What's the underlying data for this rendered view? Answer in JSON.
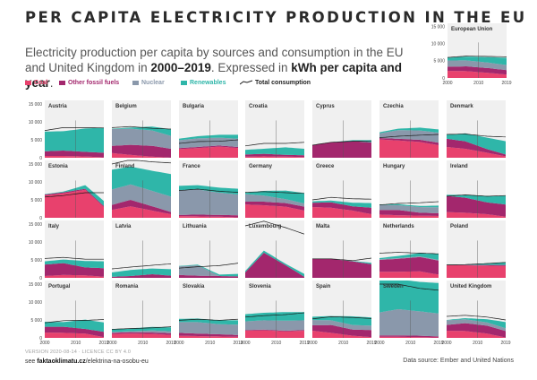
{
  "header": {
    "title": "PER CAPITA ELECTRICITY PRODUCTION IN THE EU",
    "subtitle_1": "Electricity production per capita by sources and consumption",
    "subtitle_2": " in the EU and United Kingdom in ",
    "subtitle_3": "2000–2019",
    "subtitle_4": ". Expressed in ",
    "subtitle_5": "kWh per capita and year",
    "subtitle_6": "."
  },
  "legend": {
    "coal": "Coal",
    "other_fossil": "Other fossil fuels",
    "nuclear": "Nuclear",
    "renewables": "Renewables",
    "consumption": "Total consumption"
  },
  "colors": {
    "coal": "#e8416d",
    "other_fossil": "#a3276d",
    "nuclear": "#8a98ab",
    "renewables": "#2fb6a9",
    "consumption": "#1a1a1a",
    "panel_bg": "#f0f0f0"
  },
  "footer": {
    "version": "VERSION 2020-08-14 · LICENCE CC BY 4.0",
    "link_prefix": "see ",
    "link_domain": "faktaoklimatu.cz",
    "link_path": "/elektrina-na-osobu-eu",
    "source": "Data source: Ember and United Nations"
  },
  "chart_data": {
    "type": "area",
    "stacked": true,
    "series_order": [
      "coal",
      "other_fossil",
      "nuclear",
      "renewables"
    ],
    "x_ticks": [
      "2000",
      "2010",
      "2019"
    ],
    "y_ticks": [
      "0",
      "5 000",
      "10 000",
      "15 000"
    ],
    "ylim": [
      0,
      16000
    ],
    "ylabel": "",
    "xlabel": "",
    "countries": [
      {
        "name": "European Union",
        "coal": [
          2100,
          2000,
          1500,
          1000
        ],
        "other_fossil": [
          1200,
          1400,
          1400,
          1300
        ],
        "nuclear": [
          1800,
          1750,
          1600,
          1500
        ],
        "renewables": [
          800,
          1100,
          1600,
          2100
        ],
        "consumption": [
          6000,
          6400,
          6300,
          6200
        ]
      },
      {
        "name": "Austria",
        "coal": [
          500,
          500,
          350,
          100
        ],
        "other_fossil": [
          1300,
          1500,
          1300,
          1300
        ],
        "nuclear": [
          0,
          0,
          0,
          0
        ],
        "renewables": [
          5500,
          5400,
          6500,
          7000
        ],
        "consumption": [
          7600,
          8400,
          8400,
          8300
        ]
      },
      {
        "name": "Belgium",
        "coal": [
          1300,
          800,
          300,
          0
        ],
        "other_fossil": [
          2000,
          2800,
          3000,
          2500
        ],
        "nuclear": [
          4700,
          4500,
          4300,
          3600
        ],
        "renewables": [
          100,
          300,
          1100,
          1800
        ],
        "consumption": [
          8400,
          8700,
          8200,
          8000
        ]
      },
      {
        "name": "Bulgaria",
        "coal": [
          2400,
          2700,
          3100,
          2700
        ],
        "other_fossil": [
          300,
          300,
          300,
          300
        ],
        "nuclear": [
          2200,
          2400,
          2200,
          2300
        ],
        "renewables": [
          400,
          600,
          800,
          1100
        ],
        "consumption": [
          4000,
          4500,
          4600,
          5000
        ]
      },
      {
        "name": "Croatia",
        "coal": [
          300,
          400,
          300,
          200
        ],
        "other_fossil": [
          600,
          700,
          500,
          500
        ],
        "nuclear": [
          0,
          0,
          0,
          0
        ],
        "renewables": [
          1300,
          1400,
          2100,
          1800
        ],
        "consumption": [
          3300,
          4000,
          4000,
          4300
        ]
      },
      {
        "name": "Cyprus",
        "coal": [
          0,
          0,
          0,
          0
        ],
        "other_fossil": [
          3500,
          4300,
          4600,
          4300
        ],
        "nuclear": [
          0,
          0,
          0,
          0
        ],
        "renewables": [
          0,
          0,
          300,
          600
        ],
        "consumption": [
          3500,
          4300,
          4600,
          4700
        ]
      },
      {
        "name": "Czechia",
        "coal": [
          5100,
          4800,
          4400,
          3500
        ],
        "other_fossil": [
          400,
          500,
          600,
          700
        ],
        "nuclear": [
          1300,
          2400,
          2600,
          2800
        ],
        "renewables": [
          300,
          400,
          800,
          900
        ],
        "consumption": [
          5600,
          6000,
          6300,
          6500
        ]
      },
      {
        "name": "Denmark",
        "coal": [
          3000,
          2500,
          1400,
          400
        ],
        "other_fossil": [
          2300,
          2100,
          1000,
          500
        ],
        "nuclear": [
          0,
          0,
          0,
          0
        ],
        "renewables": [
          1100,
          2200,
          3200,
          3700
        ],
        "consumption": [
          6500,
          6600,
          6000,
          5800
        ]
      },
      {
        "name": "Estonia",
        "coal": [
          6200,
          6800,
          7800,
          3000
        ],
        "other_fossil": [
          300,
          300,
          300,
          300
        ],
        "nuclear": [
          0,
          0,
          0,
          0
        ],
        "renewables": [
          100,
          200,
          1000,
          1400
        ],
        "consumption": [
          5800,
          6200,
          7000,
          7000
        ]
      },
      {
        "name": "Finland",
        "coal": [
          2200,
          3200,
          2000,
          1000
        ],
        "other_fossil": [
          1400,
          1800,
          1200,
          600
        ],
        "nuclear": [
          4300,
          4300,
          4300,
          4300
        ],
        "renewables": [
          5500,
          5000,
          5600,
          6300
        ],
        "consumption": [
          15000,
          16200,
          15600,
          15300
        ]
      },
      {
        "name": "France",
        "coal": [
          500,
          400,
          300,
          100
        ],
        "other_fossil": [
          300,
          500,
          500,
          600
        ],
        "nuclear": [
          6900,
          7000,
          6200,
          5800
        ],
        "renewables": [
          1200,
          1200,
          1400,
          1600
        ],
        "consumption": [
          7600,
          8000,
          7400,
          7100
        ]
      },
      {
        "name": "Germany",
        "coal": [
          3700,
          3500,
          3100,
          2000
        ],
        "other_fossil": [
          800,
          1000,
          1000,
          1100
        ],
        "nuclear": [
          2100,
          1700,
          1100,
          900
        ],
        "renewables": [
          400,
          1300,
          2400,
          2900
        ],
        "consumption": [
          7100,
          7300,
          7000,
          6800
        ]
      },
      {
        "name": "Greece",
        "coal": [
          3000,
          2800,
          2000,
          1000
        ],
        "other_fossil": [
          1200,
          1500,
          1200,
          1800
        ],
        "nuclear": [
          0,
          0,
          0,
          0
        ],
        "renewables": [
          400,
          500,
          1000,
          1300
        ],
        "consumption": [
          5000,
          5700,
          5300,
          5200
        ]
      },
      {
        "name": "Hungary",
        "coal": [
          900,
          700,
          600,
          500
        ],
        "other_fossil": [
          1300,
          1500,
          800,
          800
        ],
        "nuclear": [
          1400,
          1300,
          1600,
          1600
        ],
        "renewables": [
          100,
          300,
          300,
          500
        ],
        "consumption": [
          3600,
          4000,
          4200,
          4500
        ]
      },
      {
        "name": "Ireland",
        "coal": [
          1600,
          1400,
          1000,
          300
        ],
        "other_fossil": [
          4500,
          4200,
          3300,
          3400
        ],
        "nuclear": [
          0,
          0,
          0,
          0
        ],
        "renewables": [
          300,
          800,
          1800,
          2400
        ],
        "consumption": [
          6000,
          6400,
          6000,
          6200
        ]
      },
      {
        "name": "Italy",
        "coal": [
          500,
          800,
          700,
          300
        ],
        "other_fossil": [
          3200,
          3300,
          2200,
          2400
        ],
        "nuclear": [
          0,
          0,
          0,
          0
        ],
        "renewables": [
          900,
          1000,
          1800,
          1900
        ],
        "consumption": [
          5400,
          5700,
          5200,
          5200
        ]
      },
      {
        "name": "Latvia",
        "coal": [
          0,
          0,
          0,
          0
        ],
        "other_fossil": [
          300,
          500,
          1000,
          600
        ],
        "nuclear": [
          0,
          0,
          0,
          0
        ],
        "renewables": [
          1200,
          1700,
          1600,
          1800
        ],
        "consumption": [
          2500,
          3000,
          3500,
          3900
        ]
      },
      {
        "name": "Lithuania",
        "coal": [
          0,
          0,
          0,
          0
        ],
        "other_fossil": [
          800,
          600,
          500,
          400
        ],
        "nuclear": [
          2400,
          2900,
          0,
          0
        ],
        "renewables": [
          100,
          200,
          400,
          700
        ],
        "consumption": [
          2700,
          3100,
          3400,
          4100
        ]
      },
      {
        "name": "Luxembourg",
        "coal": [
          0,
          0,
          0,
          0
        ],
        "other_fossil": [
          1500,
          7000,
          3500,
          300
        ],
        "nuclear": [
          0,
          0,
          0,
          0
        ],
        "renewables": [
          400,
          600,
          400,
          800
        ],
        "consumption": [
          14500,
          15800,
          14000,
          12200
        ]
      },
      {
        "name": "Malta",
        "coal": [
          0,
          0,
          0,
          0
        ],
        "other_fossil": [
          5300,
          5300,
          4600,
          3800
        ],
        "nuclear": [
          0,
          0,
          0,
          0
        ],
        "renewables": [
          0,
          0,
          100,
          400
        ],
        "consumption": [
          5300,
          5300,
          4800,
          5500
        ]
      },
      {
        "name": "Netherlands",
        "coal": [
          1700,
          1700,
          1800,
          900
        ],
        "other_fossil": [
          3300,
          3600,
          4000,
          3900
        ],
        "nuclear": [
          200,
          200,
          200,
          200
        ],
        "renewables": [
          300,
          600,
          900,
          1700
        ],
        "consumption": [
          6900,
          7100,
          6900,
          6700
        ]
      },
      {
        "name": "Poland",
        "coal": [
          3500,
          3500,
          3400,
          3300
        ],
        "other_fossil": [
          100,
          100,
          200,
          300
        ],
        "nuclear": [
          0,
          0,
          0,
          0
        ],
        "renewables": [
          100,
          100,
          400,
          700
        ],
        "consumption": [
          3600,
          3700,
          4000,
          4300
        ]
      },
      {
        "name": "Portugal",
        "coal": [
          1500,
          1400,
          1200,
          200
        ],
        "other_fossil": [
          1600,
          1700,
          1300,
          1500
        ],
        "nuclear": [
          0,
          0,
          0,
          0
        ],
        "renewables": [
          1400,
          1300,
          2600,
          2600
        ],
        "consumption": [
          4200,
          4800,
          4900,
          5100
        ]
      },
      {
        "name": "Romania",
        "coal": [
          1100,
          1200,
          1100,
          800
        ],
        "other_fossil": [
          300,
          400,
          400,
          500
        ],
        "nuclear": [
          250,
          250,
          550,
          550
        ],
        "renewables": [
          700,
          800,
          1000,
          1100
        ],
        "consumption": [
          2400,
          2600,
          2800,
          3100
        ]
      },
      {
        "name": "Slovakia",
        "coal": [
          600,
          500,
          400,
          300
        ],
        "other_fossil": [
          800,
          700,
          600,
          500
        ],
        "nuclear": [
          3000,
          3200,
          2800,
          2900
        ],
        "renewables": [
          900,
          1000,
          1100,
          1200
        ],
        "consumption": [
          4900,
          5200,
          4900,
          5200
        ]
      },
      {
        "name": "Slovenia",
        "coal": [
          2000,
          2100,
          1800,
          2000
        ],
        "other_fossil": [
          200,
          200,
          200,
          200
        ],
        "nuclear": [
          2400,
          2600,
          2800,
          2700
        ],
        "renewables": [
          2000,
          2100,
          2400,
          2300
        ],
        "consumption": [
          5800,
          6200,
          6500,
          7000
        ]
      },
      {
        "name": "Spain",
        "coal": [
          2000,
          1400,
          600,
          200
        ],
        "other_fossil": [
          1500,
          2200,
          1700,
          2000
        ],
        "nuclear": [
          1500,
          1300,
          1300,
          1200
        ],
        "renewables": [
          900,
          1200,
          2400,
          2300
        ],
        "consumption": [
          5300,
          5900,
          5700,
          5400
        ]
      },
      {
        "name": "Sweden",
        "coal": [
          300,
          300,
          200,
          100
        ],
        "other_fossil": [
          400,
          400,
          400,
          300
        ],
        "nuclear": [
          6400,
          7300,
          6800,
          6400
        ],
        "renewables": [
          9000,
          8400,
          8200,
          8500
        ],
        "consumption": [
          15000,
          15000,
          13800,
          13300
        ]
      },
      {
        "name": "United Kingdom",
        "coal": [
          2000,
          1900,
          1200,
          100
        ],
        "other_fossil": [
          1600,
          2200,
          2200,
          1800
        ],
        "nuclear": [
          1300,
          1100,
          900,
          800
        ],
        "renewables": [
          100,
          300,
          900,
          1700
        ],
        "consumption": [
          6000,
          6300,
          5800,
          5000
        ]
      }
    ]
  }
}
